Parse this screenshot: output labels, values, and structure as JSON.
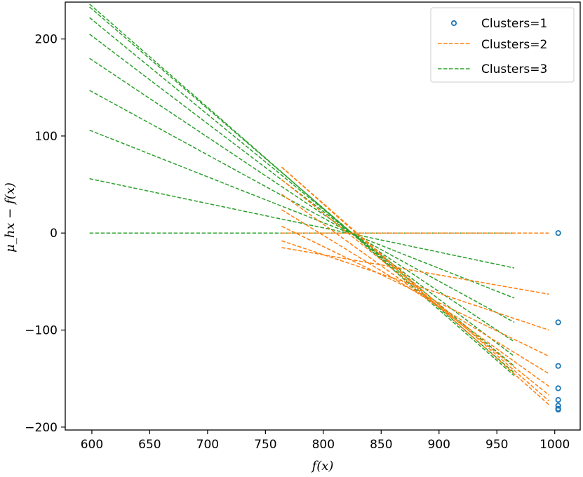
{
  "chart_data": {
    "type": "line",
    "xlabel": "f(x)",
    "ylabel": "μ_hx − f(x)",
    "xlim": [
      577,
      1022
    ],
    "ylim": [
      -203,
      238
    ],
    "xticks": [
      600,
      650,
      700,
      750,
      800,
      850,
      900,
      950,
      1000
    ],
    "yticks": [
      -200,
      -100,
      0,
      100,
      200
    ],
    "xtick_labels": [
      "600",
      "650",
      "700",
      "750",
      "800",
      "850",
      "900",
      "950",
      "1000"
    ],
    "ytick_labels": [
      "−200",
      "−100",
      "0",
      "100",
      "200"
    ],
    "legend_position": "top-right",
    "legend": [
      "Clusters=1",
      "Clusters=2",
      "Clusters=3"
    ],
    "colors": {
      "clusters1": "#1f77b4",
      "clusters2": "#ff7f0e",
      "clusters3": "#2ca02c"
    },
    "series": [
      {
        "name": "Clusters=1",
        "style": "scatter-open-circle",
        "x": [
          1003,
          1003,
          1003,
          1003,
          1003,
          1003,
          1003,
          1003
        ],
        "y": [
          0,
          -92,
          -137,
          -160,
          -172,
          -178,
          -181,
          -182
        ]
      },
      {
        "name": "Clusters=2",
        "style": "dashed",
        "lines": [
          {
            "x": [
              764,
              995
            ],
            "y": [
              0,
              0
            ]
          },
          {
            "x": [
              764,
              995
            ],
            "y": [
              -15,
              -63
            ]
          },
          {
            "x": [
              764,
              995
            ],
            "y": [
              -8,
              -100
            ]
          },
          {
            "x": [
              764,
              995
            ],
            "y": [
              7,
              -127
            ]
          },
          {
            "x": [
              764,
              995
            ],
            "y": [
              24,
              -145
            ]
          },
          {
            "x": [
              764,
              995
            ],
            "y": [
              40,
              -158
            ]
          },
          {
            "x": [
              764,
              995
            ],
            "y": [
              55,
              -167
            ]
          },
          {
            "x": [
              764,
              995
            ],
            "y": [
              68,
              -173
            ]
          },
          {
            "x": [
              764,
              995
            ],
            "y": [
              68,
              -177
            ]
          }
        ]
      },
      {
        "name": "Clusters=3",
        "style": "dashed",
        "lines": [
          {
            "x": [
              598,
              965
            ],
            "y": [
              0,
              0
            ]
          },
          {
            "x": [
              598,
              965
            ],
            "y": [
              56,
              -36
            ]
          },
          {
            "x": [
              598,
              965
            ],
            "y": [
              106,
              -67
            ]
          },
          {
            "x": [
              598,
              965
            ],
            "y": [
              147,
              -92
            ]
          },
          {
            "x": [
              598,
              965
            ],
            "y": [
              180,
              -112
            ]
          },
          {
            "x": [
              598,
              965
            ],
            "y": [
              205,
              -127
            ]
          },
          {
            "x": [
              598,
              965
            ],
            "y": [
              222,
              -137
            ]
          },
          {
            "x": [
              598,
              965
            ],
            "y": [
              233,
              -144
            ]
          },
          {
            "x": [
              598,
              965
            ],
            "y": [
              236,
              -147
            ]
          }
        ]
      }
    ]
  }
}
